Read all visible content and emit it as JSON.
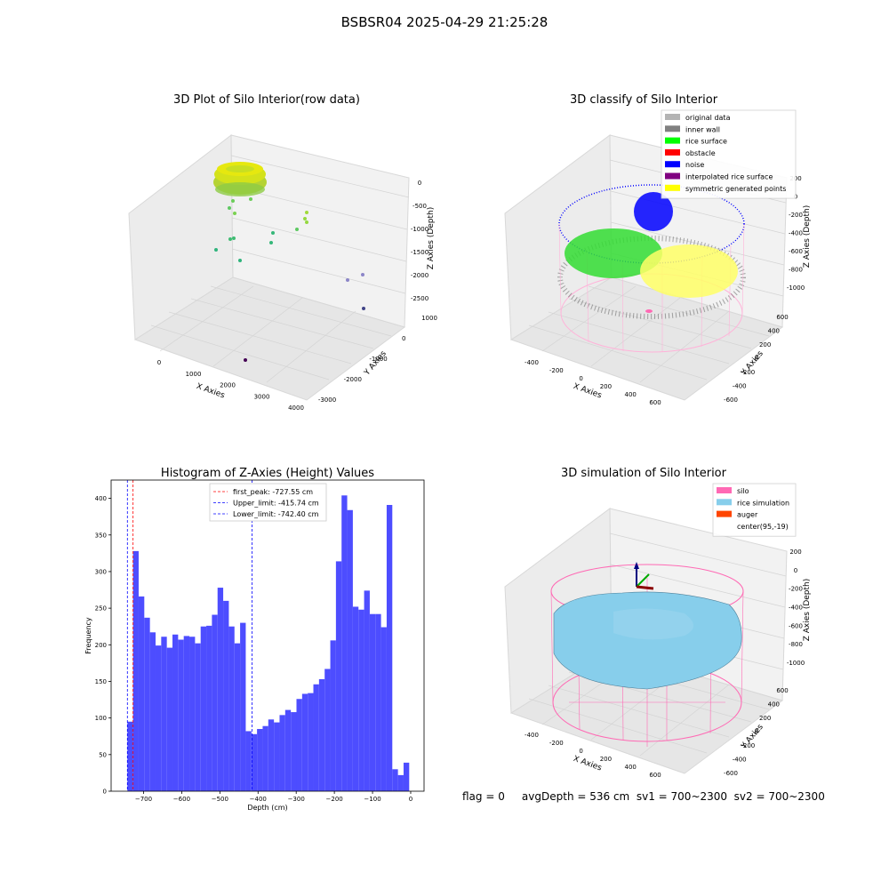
{
  "figure": {
    "suptitle": "BSBSR04 2025-04-29 21:25:28",
    "status_line": "flag = 0     avgDepth = 536 cm  sv1 = 700~2300  sv2 = 700~2300"
  },
  "colors": {
    "histogram_bar": "#4d4dff",
    "first_peak_line": "#ff0000",
    "upper_limit_line": "#0000ff",
    "lower_limit_line": "#0000ff",
    "inner_wall": "#808080",
    "original_data": "#b3b3b3",
    "rice_surface": "#00ff00",
    "obstacle": "#ff0000",
    "noise": "#0000ff",
    "interpolated_rice_surface": "#800080",
    "symmetric_generated_points": "#ffff00",
    "silo": "#ff69b4",
    "rice_simulation": "#87ceeb",
    "auger": "#ff4500"
  },
  "chart_data": [
    {
      "type": "scatter",
      "projection": "3d",
      "title": "3D Plot of Silo Interior(row data)",
      "xlabel": "X Axies",
      "ylabel": "Y Axies",
      "zlabel": "Z Axies (Depth)",
      "xticks": [
        "0",
        "1000",
        "2000",
        "3000",
        "4000"
      ],
      "yticks": [
        "1000",
        "0",
        "-1000",
        "-2000",
        "-3000"
      ],
      "zticks": [
        "0",
        "-500",
        "-1000",
        "-1500",
        "-2000",
        "-2500"
      ],
      "grid": true,
      "legend": "none"
    },
    {
      "type": "scatter",
      "projection": "3d",
      "title": "3D classify of Silo Interior",
      "xlabel": "X Axies",
      "ylabel": "Y Axies",
      "zlabel": "Z Axies (Depth)",
      "xticks": [
        "-400",
        "-200",
        "0",
        "200",
        "400",
        "600"
      ],
      "yticks": [
        "600",
        "400",
        "200",
        "0",
        "-200",
        "-400",
        "-600"
      ],
      "zticks": [
        "200",
        "0",
        "-200",
        "-400",
        "-600",
        "-800",
        "-1000"
      ],
      "legend": [
        {
          "label": "original data",
          "color": "#b3b3b3"
        },
        {
          "label": "inner wall",
          "color": "#808080"
        },
        {
          "label": "rice surface",
          "color": "#00ff00"
        },
        {
          "label": "obstacle",
          "color": "#ff0000"
        },
        {
          "label": "noise",
          "color": "#0000ff"
        },
        {
          "label": "interpolated rice surface",
          "color": "#800080"
        },
        {
          "label": "symmetric generated points",
          "color": "#ffff00"
        }
      ],
      "legend_position": "top-right",
      "grid": true
    },
    {
      "type": "bar",
      "subtype": "histogram",
      "title": "Histogram of Z-Axies (Height) Values",
      "xlabel": "Depth (cm)",
      "ylabel": "Frequency",
      "xlim": [
        -785,
        35
      ],
      "ylim": [
        0,
        425
      ],
      "xticks": [
        -700,
        -600,
        -500,
        -400,
        -300,
        -200,
        -100,
        0
      ],
      "yticks": [
        0,
        50,
        100,
        150,
        200,
        250,
        300,
        350,
        400
      ],
      "bin_start": -742.4,
      "bin_width": 14.77,
      "values": [
        95,
        328,
        266,
        237,
        217,
        199,
        211,
        196,
        214,
        207,
        212,
        211,
        202,
        225,
        226,
        241,
        278,
        260,
        225,
        202,
        230,
        82,
        78,
        85,
        89,
        98,
        94,
        104,
        111,
        108,
        126,
        133,
        134,
        146,
        153,
        167,
        206,
        314,
        404,
        384,
        252,
        248,
        274,
        242,
        242,
        224,
        391,
        30,
        22,
        39
      ],
      "vlines": [
        {
          "label": "first_peak: -727.55 cm",
          "x": -727.55,
          "color": "#ff0000"
        },
        {
          "label": "Upper_limit: -415.74 cm",
          "x": -415.74,
          "color": "#0000ff"
        },
        {
          "label": "Lower_limit: -742.40 cm",
          "x": -742.4,
          "color": "#0000ff"
        }
      ],
      "legend_position": "top-center",
      "grid": false
    },
    {
      "type": "surface",
      "projection": "3d",
      "title": "3D simulation of Silo Interior",
      "xlabel": "X Axies",
      "ylabel": "Y Axies",
      "zlabel": "Z Axies (Depth)",
      "xticks": [
        "-400",
        "-200",
        "0",
        "200",
        "400",
        "600"
      ],
      "yticks": [
        "600",
        "400",
        "200",
        "0",
        "-200",
        "-400",
        "-600"
      ],
      "zticks": [
        "200",
        "0",
        "-200",
        "-400",
        "-600",
        "-800",
        "-1000"
      ],
      "legend": [
        {
          "label": "silo",
          "color": "#ff69b4"
        },
        {
          "label": "rice simulation",
          "color": "#87ceeb"
        },
        {
          "label": "auger",
          "color": "#ff4500"
        },
        {
          "label": "center(95,-19)",
          "color": "none"
        }
      ],
      "legend_position": "top-right",
      "grid": true
    }
  ]
}
